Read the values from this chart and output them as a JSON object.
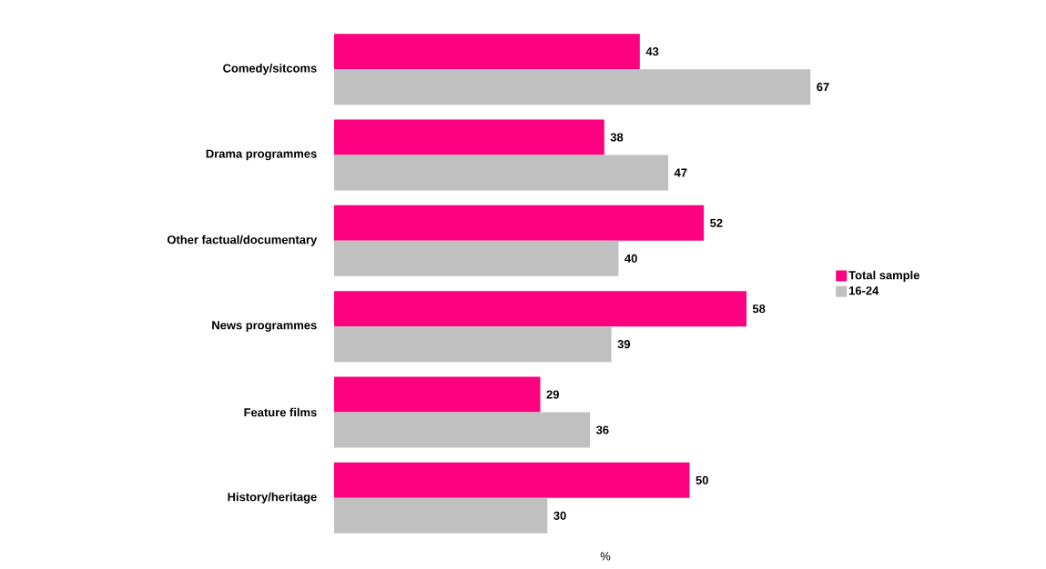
{
  "chart_data": {
    "type": "bar",
    "orientation": "horizontal",
    "xlabel": "%",
    "categories": [
      "Comedy/sitcoms",
      "Drama programmes",
      "Other factual/documentary",
      "News programmes",
      "Feature films",
      "History/heritage"
    ],
    "series": [
      {
        "name": "Total sample",
        "color": "#ff0080",
        "values": [
          43,
          38,
          52,
          58,
          29,
          50
        ]
      },
      {
        "name": "16-24",
        "color": "#c0c0c0",
        "values": [
          67,
          47,
          40,
          39,
          36,
          30
        ]
      }
    ],
    "data_labels": true,
    "legend": "right",
    "tick_labels": "y"
  }
}
